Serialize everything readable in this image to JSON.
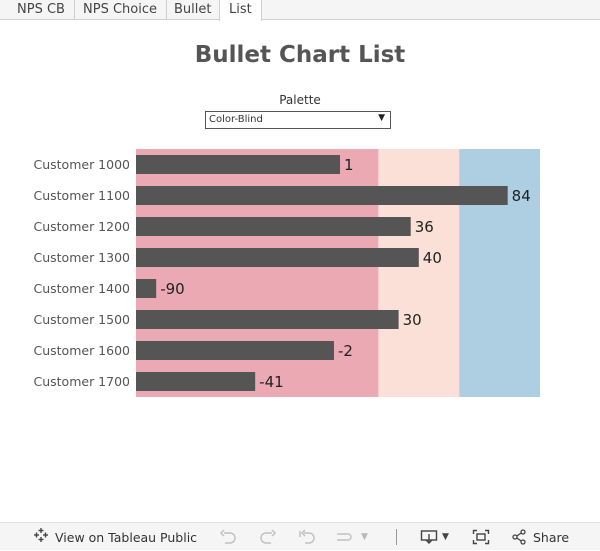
{
  "tabs": [
    {
      "label": "NPS CB",
      "active": false
    },
    {
      "label": "NPS Choice",
      "active": false
    },
    {
      "label": "Bullet",
      "active": false
    },
    {
      "label": "List",
      "active": true
    }
  ],
  "title": "Bullet Chart List",
  "palette": {
    "label": "Palette",
    "value": "Color-Blind"
  },
  "colors": {
    "band_low": "#eba9b3",
    "band_mid": "#fbe0d7",
    "band_high": "#aecfe2",
    "bar": "#555555"
  },
  "chart_data": {
    "type": "bar",
    "orientation": "horizontal",
    "categories": [
      "Customer 1000",
      "Customer 1100",
      "Customer 1200",
      "Customer 1300",
      "Customer 1400",
      "Customer 1500",
      "Customer 1600",
      "Customer 1700"
    ],
    "values": [
      1,
      84,
      36,
      40,
      -90,
      30,
      -2,
      -41
    ],
    "xlim": [
      -100,
      100
    ],
    "bands": [
      {
        "from": -100,
        "to": 20
      },
      {
        "from": 20,
        "to": 60
      },
      {
        "from": 60,
        "to": 100
      }
    ],
    "title": "",
    "xlabel": "",
    "ylabel": ""
  },
  "toolbar": {
    "view_label": "View on Tableau Public",
    "share_label": "Share"
  }
}
